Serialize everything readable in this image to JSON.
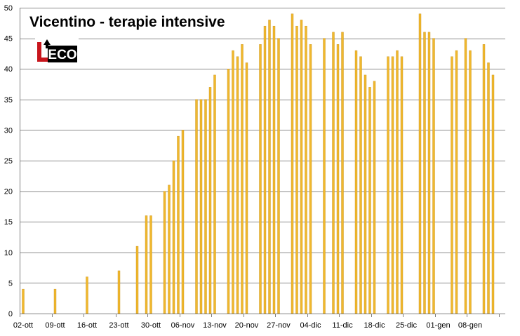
{
  "chart_data": {
    "type": "bar",
    "title": "Vicentino  - terapie intensive",
    "xlabel": "",
    "ylabel": "",
    "ylim": [
      0,
      50
    ],
    "yticks": [
      0,
      5,
      10,
      15,
      20,
      25,
      30,
      35,
      40,
      45,
      50
    ],
    "grid": true,
    "legend": "none",
    "bar_color": "#F0B82E",
    "bar_edge_color": "#C8911A",
    "first_date": "02-ott",
    "tick_labels": [
      "02-ott",
      "09-ott",
      "16-ott",
      "23-ott",
      "30-ott",
      "06-nov",
      "13-nov",
      "20-nov",
      "27-nov",
      "04-dic",
      "11-dic",
      "18-dic",
      "25-dic",
      "01-gen",
      "08-gen"
    ],
    "bars": [
      {
        "x": "02-ott",
        "y": 4
      },
      {
        "x": "09-ott",
        "y": 4
      },
      {
        "x": "16-ott",
        "y": 6
      },
      {
        "x": "23-ott",
        "y": 7
      },
      {
        "x": "27-ott",
        "y": 11
      },
      {
        "x": "29-ott",
        "y": 16
      },
      {
        "x": "30-ott",
        "y": 16
      },
      {
        "x": "02-nov",
        "y": 20
      },
      {
        "x": "03-nov",
        "y": 21
      },
      {
        "x": "04-nov",
        "y": 25
      },
      {
        "x": "05-nov",
        "y": 29
      },
      {
        "x": "06-nov",
        "y": 30
      },
      {
        "x": "09-nov",
        "y": 35
      },
      {
        "x": "10-nov",
        "y": 35
      },
      {
        "x": "11-nov",
        "y": 35
      },
      {
        "x": "12-nov",
        "y": 37
      },
      {
        "x": "13-nov",
        "y": 39
      },
      {
        "x": "16-nov",
        "y": 40
      },
      {
        "x": "17-nov",
        "y": 43
      },
      {
        "x": "18-nov",
        "y": 42
      },
      {
        "x": "19-nov",
        "y": 44
      },
      {
        "x": "20-nov",
        "y": 41
      },
      {
        "x": "23-nov",
        "y": 44
      },
      {
        "x": "24-nov",
        "y": 47
      },
      {
        "x": "25-nov",
        "y": 48
      },
      {
        "x": "26-nov",
        "y": 47
      },
      {
        "x": "27-nov",
        "y": 45
      },
      {
        "x": "30-nov",
        "y": 49
      },
      {
        "x": "01-dic",
        "y": 47
      },
      {
        "x": "02-dic",
        "y": 48
      },
      {
        "x": "03-dic",
        "y": 47
      },
      {
        "x": "04-dic",
        "y": 44
      },
      {
        "x": "07-dic",
        "y": 45
      },
      {
        "x": "09-dic",
        "y": 46
      },
      {
        "x": "10-dic",
        "y": 44
      },
      {
        "x": "11-dic",
        "y": 46
      },
      {
        "x": "14-dic",
        "y": 43
      },
      {
        "x": "15-dic",
        "y": 42
      },
      {
        "x": "16-dic",
        "y": 39
      },
      {
        "x": "17-dic",
        "y": 37
      },
      {
        "x": "18-dic",
        "y": 38
      },
      {
        "x": "21-dic",
        "y": 42
      },
      {
        "x": "22-dic",
        "y": 42
      },
      {
        "x": "23-dic",
        "y": 43
      },
      {
        "x": "24-dic",
        "y": 42
      },
      {
        "x": "28-dic",
        "y": 49
      },
      {
        "x": "29-dic",
        "y": 46
      },
      {
        "x": "30-dic",
        "y": 46
      },
      {
        "x": "31-dic",
        "y": 45
      },
      {
        "x": "04-gen",
        "y": 42
      },
      {
        "x": "05-gen",
        "y": 43
      },
      {
        "x": "07-gen",
        "y": 45
      },
      {
        "x": "08-gen",
        "y": 43
      },
      {
        "x": "11-gen",
        "y": 44
      },
      {
        "x": "12-gen",
        "y": 41
      },
      {
        "x": "13-gen",
        "y": 39
      }
    ]
  },
  "logo": {
    "text": "L'ECO"
  }
}
